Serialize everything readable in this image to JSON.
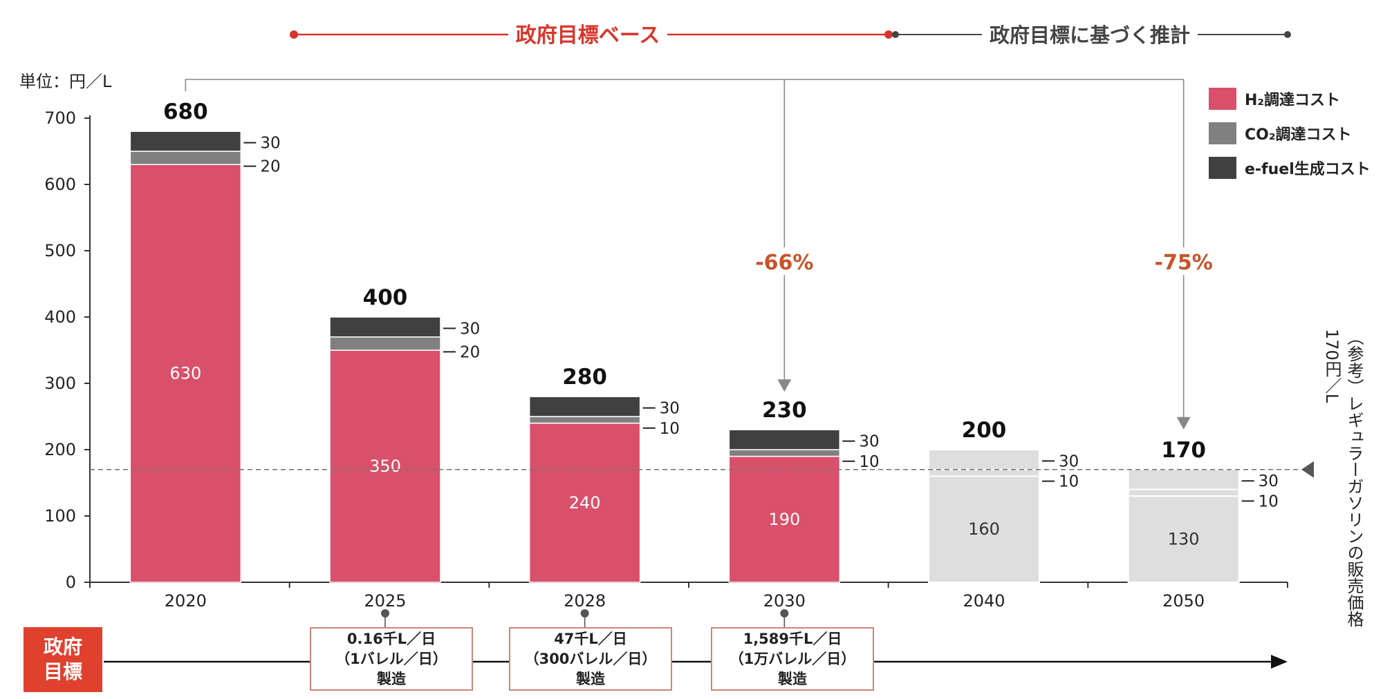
{
  "unit_label": "単位：円／L",
  "phase_labels": {
    "target_base": "政府目標ベース",
    "estimate": "政府目標に基づく推計"
  },
  "colors": {
    "h2": "#d9506b",
    "co2": "#808080",
    "efuel": "#404040",
    "projection": "#dedede",
    "phase_red": "#d9352a",
    "pct": "#c8542a"
  },
  "legend": [
    {
      "label": "H₂調達コスト",
      "color": "#d9506b"
    },
    {
      "label": "CO₂調達コスト",
      "color": "#808080"
    },
    {
      "label": "e-fuel生成コスト",
      "color": "#404040"
    }
  ],
  "reference": {
    "line1": "（参考）レギュラーガソリンの販売価格",
    "line2": "170円／L"
  },
  "reductions": [
    "-66%",
    "-75%"
  ],
  "government_target_label": [
    "政府",
    "目標"
  ],
  "milestones": [
    {
      "lines": [
        "0.16千L／日",
        "（1バレル／日）",
        "製造"
      ]
    },
    {
      "lines": [
        "47千L／日",
        "（300バレル／日）",
        "製造"
      ]
    },
    {
      "lines": [
        "1,589千L／日",
        "（1万バレル／日）",
        "製造"
      ]
    }
  ],
  "chart_data": {
    "type": "bar",
    "stacked": true,
    "categories": [
      "2020",
      "2025",
      "2028",
      "2030",
      "2040",
      "2050"
    ],
    "series": [
      {
        "name": "H₂調達コスト",
        "values": [
          630,
          350,
          240,
          190,
          160,
          130
        ]
      },
      {
        "name": "CO₂調達コスト",
        "values": [
          20,
          20,
          10,
          10,
          10,
          10
        ]
      },
      {
        "name": "e-fuel生成コスト",
        "values": [
          30,
          30,
          30,
          30,
          30,
          30
        ]
      }
    ],
    "totals": [
      680,
      400,
      280,
      230,
      200,
      170
    ],
    "projected": [
      false,
      false,
      false,
      false,
      true,
      true
    ],
    "ylim": [
      0,
      700
    ],
    "yticks": [
      0,
      100,
      200,
      300,
      400,
      500,
      600,
      700
    ],
    "reference_value": 170,
    "legend_position": "top-right",
    "grid": false
  }
}
